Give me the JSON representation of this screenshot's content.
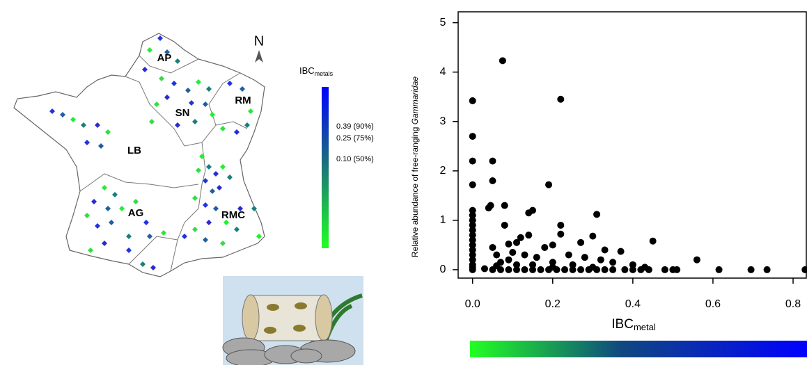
{
  "map": {
    "north": "N",
    "regions": [
      "AP",
      "SN",
      "RM",
      "LB",
      "AG",
      "RMC"
    ],
    "legend_title": "IBC",
    "legend_title_sub": "metals",
    "legend_labels": [
      "0.39 (90%)",
      "0.25 (75%)",
      "0.10 (50%)"
    ]
  },
  "chart_data": {
    "type": "scatter",
    "x_label": "IBC",
    "x_label_sub": "metal",
    "y_label": "Relative abundance of free-ranging",
    "y_label_italic": "Gammaridae",
    "color": "#000000",
    "xlim": [
      -0.036,
      0.833
    ],
    "ylim": [
      -0.17,
      5.22
    ],
    "xticks": [
      {
        "value": 0,
        "label": "0.0"
      },
      0.2,
      0.4,
      0.6,
      0.8
    ],
    "yticks": [
      0,
      1,
      2,
      3,
      4,
      5
    ],
    "series": [
      {
        "x": [
          0,
          0,
          0,
          0,
          0,
          0,
          0,
          0,
          0,
          0,
          0,
          0,
          0,
          0,
          0,
          0,
          0,
          0,
          0.075,
          0.22,
          0.05,
          0.05,
          0.045,
          0.04,
          0.08,
          0.19,
          0.15,
          0.14,
          0.31,
          0.08,
          0.22,
          0.3,
          0.45,
          0.11,
          0.09,
          0.14,
          0.12,
          0.22,
          0.27,
          0.2,
          0.18,
          0.33,
          0.37,
          0.05,
          0.06,
          0.1,
          0.13,
          0.16,
          0.24,
          0.28,
          0.32,
          0.35,
          0.07,
          0.09,
          0.11,
          0.15,
          0.2,
          0.25,
          0.56,
          0.05,
          0.07,
          0.09,
          0.11,
          0.13,
          0.15,
          0.17,
          0.19,
          0.21,
          0.23,
          0.25,
          0.27,
          0.29,
          0.31,
          0.33,
          0.35,
          0.38,
          0.4,
          0.42,
          0.44,
          0.48,
          0.5,
          0.51,
          0.615,
          0.695,
          0.735,
          0.83,
          0.43,
          0.4,
          0.06,
          0.03,
          0.2,
          0.3
        ],
        "values": [
          3.42,
          2.7,
          2.2,
          1.72,
          1.2,
          1.1,
          1.0,
          0.9,
          0.8,
          0.7,
          0.6,
          0.5,
          0.4,
          0.3,
          0.2,
          0.1,
          0.05,
          0,
          4.23,
          3.45,
          2.2,
          1.8,
          1.3,
          1.25,
          1.3,
          1.72,
          1.2,
          1.15,
          1.12,
          0.9,
          0.9,
          0.68,
          0.58,
          0.55,
          0.52,
          0.7,
          0.65,
          0.72,
          0.55,
          0.5,
          0.45,
          0.4,
          0.37,
          0.45,
          0.3,
          0.35,
          0.3,
          0.25,
          0.3,
          0.25,
          0.2,
          0.15,
          0.15,
          0.2,
          0.1,
          0.1,
          0.15,
          0.1,
          0.2,
          0,
          0,
          0,
          0,
          0,
          0,
          0,
          0,
          0,
          0,
          0,
          0,
          0,
          0,
          0,
          0,
          0,
          0,
          0,
          0,
          0,
          0,
          0,
          0,
          0,
          0,
          0,
          0.05,
          0.1,
          0.08,
          0.02,
          0.05,
          0.05
        ]
      }
    ]
  }
}
